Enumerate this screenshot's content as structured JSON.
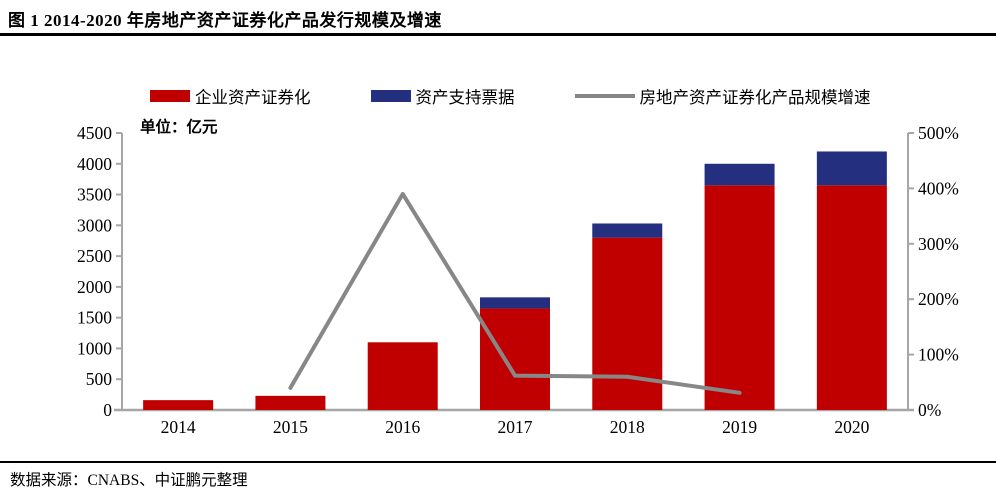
{
  "header": {
    "title": "图 1 2014-2020 年房地产资产证券化产品发行规模及增速"
  },
  "unit_label": "单位：亿元",
  "legend": [
    {
      "label": "企业资产证券化",
      "color": "#c00000",
      "type": "bar"
    },
    {
      "label": "资产支持票据",
      "color": "#252f7f",
      "type": "bar"
    },
    {
      "label": "房地产资产证券化产品规模增速",
      "color": "#878787",
      "type": "line"
    }
  ],
  "footer": {
    "source": "数据来源：CNABS、中证鹏元整理"
  },
  "chart_data": {
    "type": "combo: stacked bar + line",
    "title": "图 1 2014-2020 年房地产资产证券化产品发行规模及增速",
    "categories": [
      "2014",
      "2015",
      "2016",
      "2017",
      "2018",
      "2019",
      "2020"
    ],
    "series": [
      {
        "name": "企业资产证券化",
        "type": "bar",
        "stack": true,
        "axis": "left",
        "color": "#c00000",
        "values": [
          160,
          230,
          1100,
          1650,
          2800,
          3650,
          3650
        ]
      },
      {
        "name": "资产支持票据",
        "type": "bar",
        "stack": true,
        "axis": "left",
        "color": "#252f7f",
        "values": [
          0,
          0,
          0,
          180,
          230,
          350,
          550
        ]
      },
      {
        "name": "房地产资产证券化产品规模增速",
        "type": "line",
        "axis": "right",
        "color": "#878787",
        "values": [
          null,
          40,
          390,
          62,
          60,
          31,
          null
        ]
      }
    ],
    "y_left": {
      "min": 0,
      "max": 4500,
      "step": 500,
      "unit": "亿元"
    },
    "y_right": {
      "min": 0,
      "max": 500,
      "step": 100,
      "suffix": "%"
    },
    "grid": false,
    "legend_position": "top",
    "axis_color": "#a6a6a6"
  }
}
